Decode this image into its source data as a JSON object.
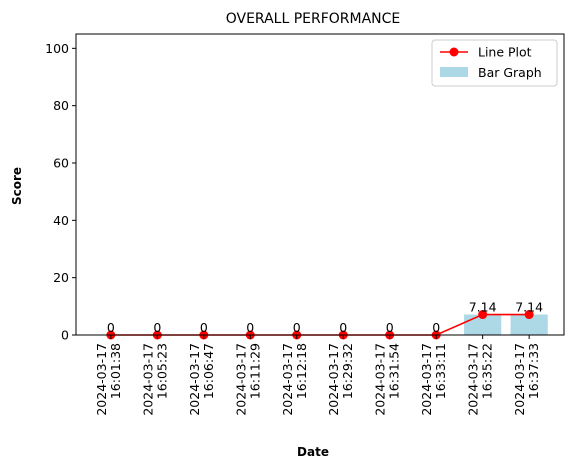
{
  "chart_data": {
    "type": "bar",
    "title": "OVERALL PERFORMANCE",
    "xlabel": "Date",
    "ylabel": "Score",
    "categories": [
      [
        "2024-03-17",
        "16:01:38"
      ],
      [
        "2024-03-17",
        "16:05:23"
      ],
      [
        "2024-03-17",
        "16:06:47"
      ],
      [
        "2024-03-17",
        "16:11:29"
      ],
      [
        "2024-03-17",
        "16:12:18"
      ],
      [
        "2024-03-17",
        "16:29:32"
      ],
      [
        "2024-03-17",
        "16:31:54"
      ],
      [
        "2024-03-17",
        "16:33:11"
      ],
      [
        "2024-03-17",
        "16:35:22"
      ],
      [
        "2024-03-17",
        "16:37:33"
      ]
    ],
    "series": [
      {
        "name": "Bar Graph",
        "type": "bar",
        "color": "#add8e6",
        "values": [
          0,
          0,
          0,
          0,
          0,
          0,
          0,
          0,
          7.14,
          7.14
        ]
      },
      {
        "name": "Line Plot",
        "type": "line",
        "color": "#ff0000",
        "marker": "circle",
        "values": [
          0,
          0,
          0,
          0,
          0,
          0,
          0,
          0,
          7.14,
          7.14
        ]
      }
    ],
    "data_labels": [
      "0",
      "0",
      "0",
      "0",
      "0",
      "0",
      "0",
      "0",
      "7.14",
      "7.14"
    ],
    "ylim": [
      0,
      105
    ],
    "yticks": [
      0,
      20,
      40,
      60,
      80,
      100
    ],
    "grid": false,
    "legend_position": "top-right"
  }
}
